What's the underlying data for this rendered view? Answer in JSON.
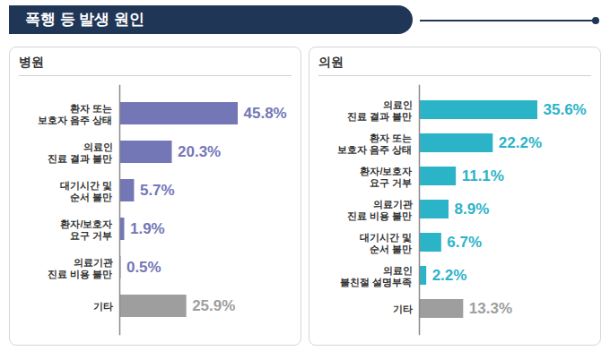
{
  "title": "폭행 등 발생 원인",
  "chart_data": [
    {
      "type": "bar",
      "orientation": "horizontal",
      "title": "병원",
      "categories": [
        "환자 또는\n보호자 음주 상태",
        "의료인\n진료 결과 불만",
        "대기시간 및\n순서 불만",
        "환자/보호자\n요구 거부",
        "의료기관\n진료 비용 불만",
        "기타"
      ],
      "values": [
        45.8,
        20.3,
        5.7,
        1.9,
        0.5,
        25.9
      ],
      "value_labels": [
        "45.8%",
        "20.3%",
        "5.7%",
        "1.9%",
        "0.5%",
        "25.9%"
      ],
      "colors": [
        "#7477b6",
        "#7477b6",
        "#7477b6",
        "#7477b6",
        "#7477b6",
        "#9e9e9e"
      ],
      "data_labels": true,
      "tick_labels": "y"
    },
    {
      "type": "bar",
      "orientation": "horizontal",
      "title": "의원",
      "categories": [
        "의료인\n진료 결과 불만",
        "환자 또는\n보호자 음주 상태",
        "환자/보호자\n요구 거부",
        "의료기관\n진료 비용 불만",
        "대기시간 및\n순서 불만",
        "의료인\n불친절 설명부족",
        "기타"
      ],
      "values": [
        35.6,
        22.2,
        11.1,
        8.9,
        6.7,
        2.2,
        13.3
      ],
      "value_labels": [
        "35.6%",
        "22.2%",
        "11.1%",
        "8.9%",
        "6.7%",
        "2.2%",
        "13.3%"
      ],
      "colors": [
        "#2bb3c8",
        "#2bb3c8",
        "#2bb3c8",
        "#2bb3c8",
        "#2bb3c8",
        "#2bb3c8",
        "#9e9e9e"
      ],
      "data_labels": true,
      "tick_labels": "y"
    }
  ]
}
